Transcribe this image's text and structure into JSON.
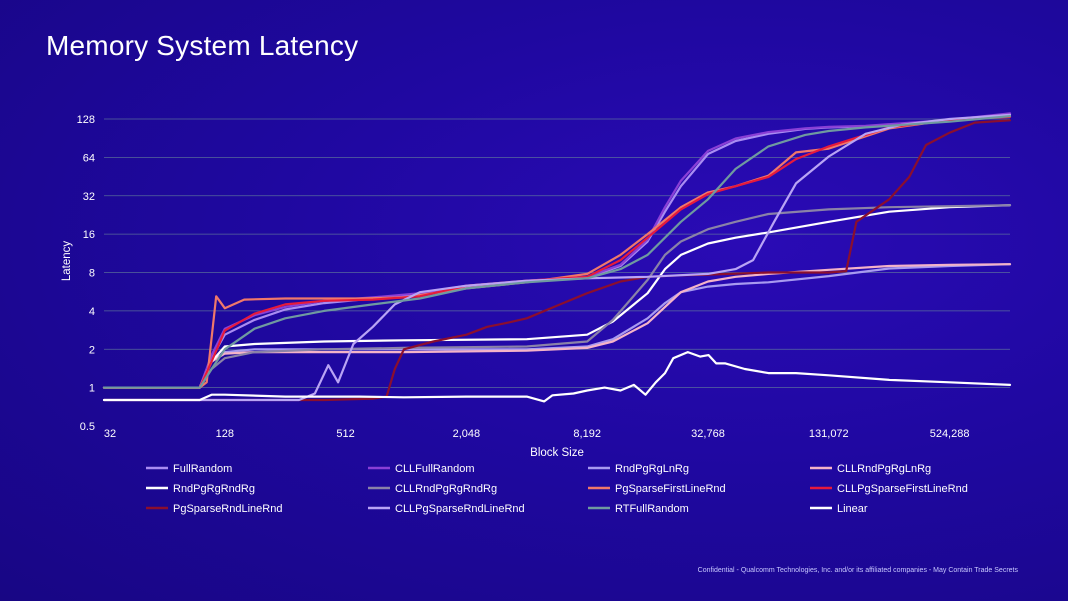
{
  "page": {
    "title": "Memory System Latency",
    "footer": "Confidential - Qualcomm Technologies, Inc. and/or its affiliated companies - May Contain Trade Secrets"
  },
  "chart_data": {
    "type": "line",
    "title": "Memory System Latency",
    "xlabel": "Block Size",
    "ylabel": "Latency",
    "x_scale": "log2",
    "y_scale": "log2",
    "xlim": [
      32,
      1048576
    ],
    "ylim": [
      0.5,
      128
    ],
    "x_ticks": [
      "32",
      "128",
      "512",
      "2,048",
      "8,192",
      "32,768",
      "131,072",
      "524,288"
    ],
    "y_ticks": [
      "0.5",
      "1",
      "2",
      "4",
      "8",
      "16",
      "32",
      "64",
      "128"
    ],
    "grid": true,
    "legend_position": "bottom",
    "series": [
      {
        "name": "FullRandom",
        "color": "#a98cf2",
        "points": [
          [
            32,
            1.0
          ],
          [
            96,
            1.0
          ],
          [
            110,
            1.7
          ],
          [
            128,
            2.6
          ],
          [
            180,
            3.4
          ],
          [
            256,
            4.1
          ],
          [
            400,
            4.6
          ],
          [
            700,
            5.0
          ],
          [
            1200,
            5.3
          ],
          [
            2048,
            6.2
          ],
          [
            4096,
            6.8
          ],
          [
            8192,
            7.3
          ],
          [
            12000,
            9
          ],
          [
            16384,
            14
          ],
          [
            20000,
            24
          ],
          [
            24000,
            38
          ],
          [
            32768,
            68
          ],
          [
            45000,
            86
          ],
          [
            65536,
            98
          ],
          [
            100000,
            107
          ],
          [
            131072,
            110
          ],
          [
            200000,
            112
          ],
          [
            524288,
            125
          ],
          [
            1048576,
            140
          ]
        ]
      },
      {
        "name": "CLLFullRandom",
        "color": "#8a3fd6",
        "points": [
          [
            32,
            1.0
          ],
          [
            96,
            1.0
          ],
          [
            110,
            1.8
          ],
          [
            128,
            2.9
          ],
          [
            180,
            3.7
          ],
          [
            256,
            4.3
          ],
          [
            400,
            4.8
          ],
          [
            700,
            5.1
          ],
          [
            1200,
            5.5
          ],
          [
            2048,
            6.3
          ],
          [
            4096,
            6.9
          ],
          [
            8192,
            7.4
          ],
          [
            12000,
            9.2
          ],
          [
            16384,
            14.5
          ],
          [
            20000,
            26
          ],
          [
            24000,
            42
          ],
          [
            32768,
            72
          ],
          [
            45000,
            90
          ],
          [
            65536,
            101
          ],
          [
            100000,
            108
          ],
          [
            131072,
            111
          ],
          [
            200000,
            113
          ],
          [
            524288,
            126
          ],
          [
            1048576,
            142
          ]
        ]
      },
      {
        "name": "RndPgRgLnRg",
        "color": "#a89af0",
        "points": [
          [
            32,
            1.0
          ],
          [
            96,
            1.0
          ],
          [
            110,
            1.6
          ],
          [
            128,
            1.9
          ],
          [
            180,
            2.0
          ],
          [
            400,
            2.0
          ],
          [
            1000,
            2.0
          ],
          [
            4096,
            2.0
          ],
          [
            8192,
            2.1
          ],
          [
            11000,
            2.4
          ],
          [
            16384,
            3.5
          ],
          [
            20000,
            4.6
          ],
          [
            24000,
            5.6
          ],
          [
            32768,
            6.2
          ],
          [
            45000,
            6.5
          ],
          [
            65536,
            6.7
          ],
          [
            131072,
            7.5
          ],
          [
            262144,
            8.6
          ],
          [
            524288,
            9.0
          ],
          [
            1048576,
            9.3
          ]
        ]
      },
      {
        "name": "CLLRndPgRgLnRg",
        "color": "#f4b3c8",
        "points": [
          [
            32,
            1.0
          ],
          [
            96,
            1.0
          ],
          [
            110,
            1.6
          ],
          [
            128,
            1.85
          ],
          [
            180,
            1.9
          ],
          [
            400,
            1.9
          ],
          [
            1000,
            1.9
          ],
          [
            4096,
            1.95
          ],
          [
            8192,
            2.05
          ],
          [
            11000,
            2.3
          ],
          [
            16384,
            3.2
          ],
          [
            20000,
            4.3
          ],
          [
            24000,
            5.6
          ],
          [
            32768,
            6.8
          ],
          [
            45000,
            7.4
          ],
          [
            65536,
            7.8
          ],
          [
            131072,
            8.4
          ],
          [
            262144,
            9.0
          ],
          [
            524288,
            9.2
          ],
          [
            1048576,
            9.3
          ]
        ]
      },
      {
        "name": "RndPgRgRndRg",
        "color": "#ffffff",
        "points": [
          [
            32,
            1.0
          ],
          [
            96,
            1.0
          ],
          [
            110,
            1.6
          ],
          [
            128,
            2.1
          ],
          [
            180,
            2.2
          ],
          [
            400,
            2.3
          ],
          [
            1000,
            2.35
          ],
          [
            4096,
            2.4
          ],
          [
            8192,
            2.6
          ],
          [
            11000,
            3.3
          ],
          [
            16384,
            5.5
          ],
          [
            20000,
            8.5
          ],
          [
            24000,
            11
          ],
          [
            32768,
            13.5
          ],
          [
            45000,
            15
          ],
          [
            65536,
            16.5
          ],
          [
            131072,
            20
          ],
          [
            262144,
            24
          ],
          [
            524288,
            26
          ],
          [
            1048576,
            27
          ]
        ]
      },
      {
        "name": "CLLRndPgRgRndRg",
        "color": "#8a82a8",
        "points": [
          [
            32,
            1.0
          ],
          [
            96,
            1.0
          ],
          [
            110,
            1.4
          ],
          [
            128,
            1.7
          ],
          [
            180,
            1.9
          ],
          [
            400,
            2.0
          ],
          [
            1000,
            2.05
          ],
          [
            4096,
            2.1
          ],
          [
            8192,
            2.3
          ],
          [
            11000,
            3.4
          ],
          [
            16384,
            7
          ],
          [
            20000,
            11
          ],
          [
            24000,
            14
          ],
          [
            32768,
            17.5
          ],
          [
            45000,
            20
          ],
          [
            65536,
            23
          ],
          [
            131072,
            25
          ],
          [
            262144,
            26
          ],
          [
            524288,
            26.5
          ],
          [
            1048576,
            27
          ]
        ]
      },
      {
        "name": "PgSparseFirstLineRnd",
        "color": "#f0786a",
        "points": [
          [
            32,
            1.0
          ],
          [
            96,
            1.0
          ],
          [
            104,
            1.1
          ],
          [
            116,
            5.2
          ],
          [
            128,
            4.2
          ],
          [
            160,
            4.9
          ],
          [
            256,
            5.0
          ],
          [
            600,
            5.0
          ],
          [
            1000,
            5.1
          ],
          [
            2048,
            6.0
          ],
          [
            4096,
            6.7
          ],
          [
            8192,
            7.8
          ],
          [
            12000,
            11
          ],
          [
            16384,
            16
          ],
          [
            24000,
            26
          ],
          [
            32768,
            34
          ],
          [
            45000,
            38
          ],
          [
            65536,
            46
          ],
          [
            90000,
            70
          ],
          [
            131072,
            75
          ],
          [
            262144,
            108
          ],
          [
            524288,
            126
          ],
          [
            1048576,
            135
          ]
        ]
      },
      {
        "name": "CLLPgSparseFirstLineRnd",
        "color": "#e61a3c",
        "points": [
          [
            32,
            1.0
          ],
          [
            96,
            1.0
          ],
          [
            110,
            1.6
          ],
          [
            128,
            2.8
          ],
          [
            180,
            3.8
          ],
          [
            256,
            4.5
          ],
          [
            400,
            4.8
          ],
          [
            700,
            4.9
          ],
          [
            1200,
            5.2
          ],
          [
            2048,
            6.3
          ],
          [
            4096,
            6.9
          ],
          [
            8192,
            7.4
          ],
          [
            12000,
            10
          ],
          [
            16384,
            15
          ],
          [
            24000,
            25
          ],
          [
            32768,
            33
          ],
          [
            45000,
            38
          ],
          [
            65536,
            45
          ],
          [
            90000,
            62
          ],
          [
            131072,
            78
          ],
          [
            262144,
            110
          ],
          [
            524288,
            126
          ],
          [
            1048576,
            133
          ]
        ]
      },
      {
        "name": "PgSparseRndLineRnd",
        "color": "#8b0f2e",
        "points": [
          [
            32,
            0.8
          ],
          [
            256,
            0.8
          ],
          [
            400,
            0.8
          ],
          [
            700,
            0.82
          ],
          [
            820,
            0.85
          ],
          [
            900,
            1.4
          ],
          [
            1000,
            2.0
          ],
          [
            1400,
            2.3
          ],
          [
            2048,
            2.6
          ],
          [
            2600,
            3.0
          ],
          [
            3200,
            3.2
          ],
          [
            4096,
            3.5
          ],
          [
            6000,
            4.5
          ],
          [
            8192,
            5.5
          ],
          [
            12000,
            6.8
          ],
          [
            16384,
            7.4
          ],
          [
            24000,
            7.6
          ],
          [
            32768,
            7.7
          ],
          [
            65536,
            8.0
          ],
          [
            131072,
            8.0
          ],
          [
            160000,
            8.2
          ],
          [
            180000,
            20
          ],
          [
            262144,
            30
          ],
          [
            330000,
            45
          ],
          [
            400000,
            80
          ],
          [
            524288,
            100
          ],
          [
            700000,
            120
          ],
          [
            1048576,
            125
          ]
        ]
      },
      {
        "name": "CLLPgSparseRndLineRnd",
        "color": "#b9a4f5",
        "points": [
          [
            32,
            0.8
          ],
          [
            300,
            0.8
          ],
          [
            360,
            0.9
          ],
          [
            420,
            1.5
          ],
          [
            470,
            1.1
          ],
          [
            560,
            2.2
          ],
          [
            700,
            3.0
          ],
          [
            900,
            4.5
          ],
          [
            1200,
            5.6
          ],
          [
            2048,
            6.3
          ],
          [
            4096,
            6.9
          ],
          [
            8192,
            7.2
          ],
          [
            16384,
            7.4
          ],
          [
            32768,
            7.8
          ],
          [
            45000,
            8.5
          ],
          [
            55000,
            10
          ],
          [
            70000,
            20
          ],
          [
            90000,
            40
          ],
          [
            131072,
            65
          ],
          [
            200000,
            98
          ],
          [
            300000,
            115
          ],
          [
            524288,
            128
          ],
          [
            1048576,
            138
          ]
        ]
      },
      {
        "name": "RTFullRandom",
        "color": "#6f9aa0",
        "points": [
          [
            32,
            1.0
          ],
          [
            96,
            1.0
          ],
          [
            110,
            1.4
          ],
          [
            128,
            2.0
          ],
          [
            180,
            2.9
          ],
          [
            256,
            3.5
          ],
          [
            400,
            4.0
          ],
          [
            700,
            4.5
          ],
          [
            1200,
            5.0
          ],
          [
            2048,
            6.0
          ],
          [
            4096,
            6.7
          ],
          [
            8192,
            7.2
          ],
          [
            12000,
            8.5
          ],
          [
            16384,
            11
          ],
          [
            24000,
            20
          ],
          [
            32768,
            30
          ],
          [
            45000,
            52
          ],
          [
            65536,
            78
          ],
          [
            100000,
            96
          ],
          [
            131072,
            103
          ],
          [
            200000,
            110
          ],
          [
            524288,
            122
          ],
          [
            1048576,
            135
          ]
        ]
      },
      {
        "name": "Linear",
        "color": "#ffffff",
        "points": [
          [
            32,
            0.8
          ],
          [
            96,
            0.8
          ],
          [
            110,
            0.88
          ],
          [
            128,
            0.88
          ],
          [
            256,
            0.85
          ],
          [
            600,
            0.85
          ],
          [
            1000,
            0.84
          ],
          [
            2048,
            0.85
          ],
          [
            4096,
            0.85
          ],
          [
            5000,
            0.78
          ],
          [
            5500,
            0.87
          ],
          [
            7000,
            0.9
          ],
          [
            8192,
            0.95
          ],
          [
            10000,
            1.0
          ],
          [
            12000,
            0.95
          ],
          [
            14000,
            1.05
          ],
          [
            16000,
            0.88
          ],
          [
            18000,
            1.1
          ],
          [
            20000,
            1.3
          ],
          [
            22000,
            1.7
          ],
          [
            26000,
            1.9
          ],
          [
            30000,
            1.75
          ],
          [
            33000,
            1.8
          ],
          [
            36000,
            1.55
          ],
          [
            40000,
            1.55
          ],
          [
            50000,
            1.4
          ],
          [
            65536,
            1.3
          ],
          [
            90000,
            1.3
          ],
          [
            131072,
            1.25
          ],
          [
            262144,
            1.15
          ],
          [
            524288,
            1.1
          ],
          [
            1048576,
            1.05
          ]
        ]
      }
    ]
  }
}
